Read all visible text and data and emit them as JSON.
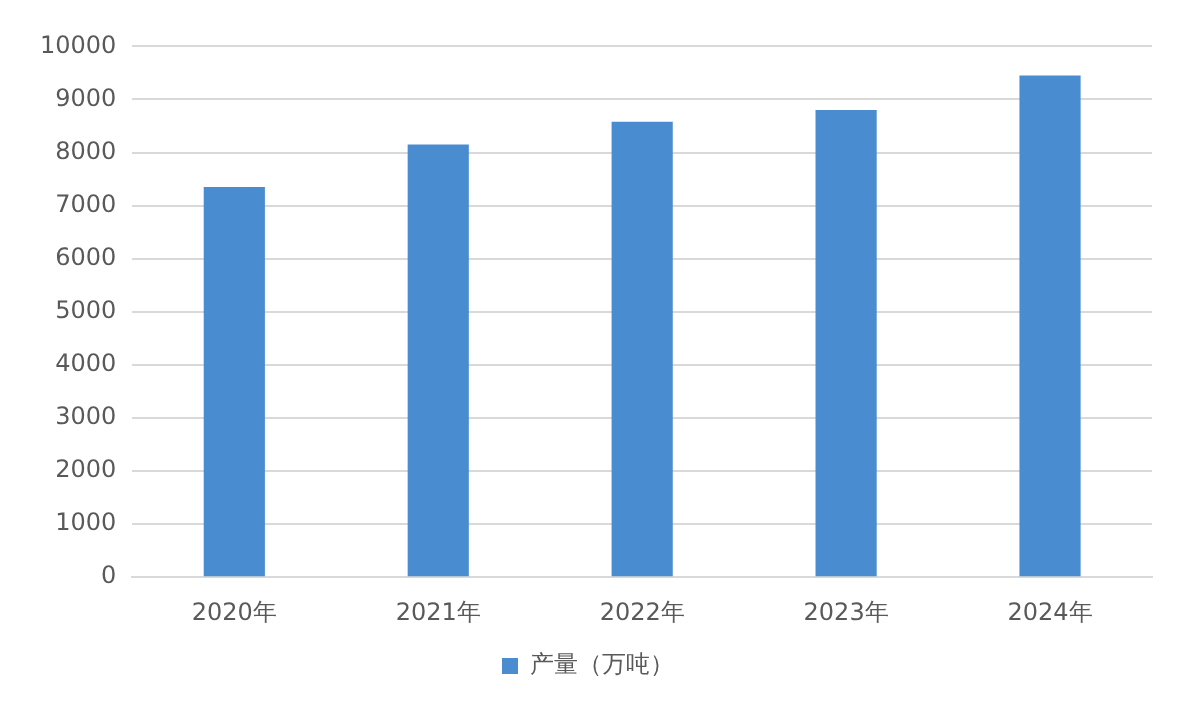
{
  "chart_data": {
    "type": "bar",
    "categories": [
      "2020年",
      "2021年",
      "2022年",
      "2023年",
      "2024年"
    ],
    "series": [
      {
        "name": "产量（万吨）",
        "color": "#4a8cd0",
        "values": [
          7350,
          8150,
          8580,
          8800,
          9450
        ]
      }
    ],
    "ylim": [
      0,
      10000
    ],
    "yticks": [
      0,
      1000,
      2000,
      3000,
      4000,
      5000,
      6000,
      7000,
      8000,
      9000,
      10000
    ],
    "grid": "y",
    "legend": "bottom"
  }
}
